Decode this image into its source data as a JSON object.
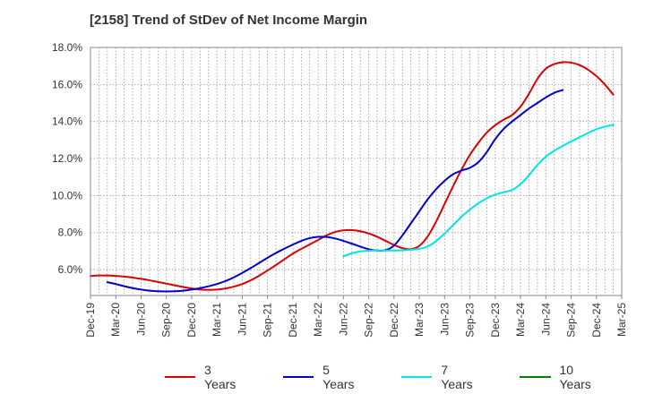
{
  "title": "[2158]  Trend of StDev of Net Income Margin",
  "chart_data": {
    "type": "line",
    "title": "[2158]  Trend of StDev of Net Income Margin",
    "xlabel": "",
    "ylabel": "",
    "x_ticks": [
      "Dec-19",
      "Mar-20",
      "Jun-20",
      "Sep-20",
      "Dec-20",
      "Mar-21",
      "Jun-21",
      "Sep-21",
      "Dec-21",
      "Mar-22",
      "Jun-22",
      "Sep-22",
      "Dec-22",
      "Mar-23",
      "Jun-23",
      "Sep-23",
      "Dec-23",
      "Mar-24",
      "Jun-24",
      "Sep-24",
      "Dec-24",
      "Mar-25"
    ],
    "y_ticks": [
      "6.0%",
      "8.0%",
      "10.0%",
      "12.0%",
      "14.0%",
      "16.0%",
      "18.0%"
    ],
    "y_tick_values": [
      6,
      8,
      10,
      12,
      14,
      16,
      18
    ],
    "ylim": [
      4.6,
      18.0
    ],
    "x_range_months": [
      0,
      63
    ],
    "grid": true,
    "legend_position": "bottom",
    "series": [
      {
        "name": "3 Years",
        "color": "#dd0000",
        "points": [
          [
            0,
            5.65
          ],
          [
            1,
            5.68
          ],
          [
            2,
            5.68
          ],
          [
            3,
            5.66
          ],
          [
            4,
            5.62
          ],
          [
            5,
            5.57
          ],
          [
            6,
            5.5
          ],
          [
            7,
            5.42
          ],
          [
            8,
            5.33
          ],
          [
            9,
            5.24
          ],
          [
            10,
            5.15
          ],
          [
            11,
            5.06
          ],
          [
            12,
            4.98
          ],
          [
            13,
            4.92
          ],
          [
            14,
            4.9
          ],
          [
            15,
            4.92
          ],
          [
            16,
            4.98
          ],
          [
            17,
            5.08
          ],
          [
            18,
            5.22
          ],
          [
            19,
            5.42
          ],
          [
            20,
            5.67
          ],
          [
            21,
            5.95
          ],
          [
            22,
            6.25
          ],
          [
            23,
            6.56
          ],
          [
            24,
            6.86
          ],
          [
            25,
            7.12
          ],
          [
            26,
            7.36
          ],
          [
            27,
            7.6
          ],
          [
            28,
            7.85
          ],
          [
            29,
            8.03
          ],
          [
            30,
            8.12
          ],
          [
            31,
            8.13
          ],
          [
            32,
            8.07
          ],
          [
            33,
            7.95
          ],
          [
            34,
            7.77
          ],
          [
            35,
            7.55
          ],
          [
            36,
            7.33
          ],
          [
            37,
            7.16
          ],
          [
            38,
            7.1
          ],
          [
            39,
            7.28
          ],
          [
            40,
            7.8
          ],
          [
            41,
            8.6
          ],
          [
            42,
            9.55
          ],
          [
            43,
            10.5
          ],
          [
            44,
            11.4
          ],
          [
            45,
            12.2
          ],
          [
            46,
            12.85
          ],
          [
            47,
            13.4
          ],
          [
            48,
            13.8
          ],
          [
            49,
            14.1
          ],
          [
            50,
            14.35
          ],
          [
            51,
            14.8
          ],
          [
            52,
            15.5
          ],
          [
            53,
            16.3
          ],
          [
            54,
            16.85
          ],
          [
            55,
            17.1
          ],
          [
            56,
            17.2
          ],
          [
            57,
            17.18
          ],
          [
            58,
            17.05
          ],
          [
            59,
            16.8
          ],
          [
            60,
            16.45
          ],
          [
            61,
            16.0
          ],
          [
            62,
            15.45
          ]
        ]
      },
      {
        "name": "5 Years",
        "color": "#0000cc",
        "points": [
          [
            2,
            5.32
          ],
          [
            3,
            5.22
          ],
          [
            4,
            5.1
          ],
          [
            5,
            5.0
          ],
          [
            6,
            4.92
          ],
          [
            7,
            4.86
          ],
          [
            8,
            4.83
          ],
          [
            9,
            4.82
          ],
          [
            10,
            4.83
          ],
          [
            11,
            4.86
          ],
          [
            12,
            4.92
          ],
          [
            13,
            5.0
          ],
          [
            14,
            5.1
          ],
          [
            15,
            5.22
          ],
          [
            16,
            5.38
          ],
          [
            17,
            5.58
          ],
          [
            18,
            5.82
          ],
          [
            19,
            6.08
          ],
          [
            20,
            6.36
          ],
          [
            21,
            6.64
          ],
          [
            22,
            6.9
          ],
          [
            23,
            7.13
          ],
          [
            24,
            7.35
          ],
          [
            25,
            7.55
          ],
          [
            26,
            7.7
          ],
          [
            27,
            7.77
          ],
          [
            28,
            7.76
          ],
          [
            29,
            7.68
          ],
          [
            30,
            7.55
          ],
          [
            31,
            7.4
          ],
          [
            32,
            7.24
          ],
          [
            33,
            7.1
          ],
          [
            34,
            7.03
          ],
          [
            35,
            7.05
          ],
          [
            36,
            7.3
          ],
          [
            37,
            7.85
          ],
          [
            38,
            8.5
          ],
          [
            39,
            9.15
          ],
          [
            40,
            9.8
          ],
          [
            41,
            10.35
          ],
          [
            42,
            10.8
          ],
          [
            43,
            11.15
          ],
          [
            44,
            11.35
          ],
          [
            45,
            11.5
          ],
          [
            46,
            11.8
          ],
          [
            47,
            12.35
          ],
          [
            48,
            13.05
          ],
          [
            49,
            13.6
          ],
          [
            50,
            14.0
          ],
          [
            51,
            14.35
          ],
          [
            52,
            14.7
          ],
          [
            53,
            15.0
          ],
          [
            54,
            15.3
          ],
          [
            55,
            15.55
          ],
          [
            56,
            15.7
          ]
        ]
      },
      {
        "name": "7 Years",
        "color": "#00e5e5",
        "points": [
          [
            30,
            6.72
          ],
          [
            31,
            6.88
          ],
          [
            32,
            6.98
          ],
          [
            33,
            7.02
          ],
          [
            34,
            7.03
          ],
          [
            35,
            7.03
          ],
          [
            36,
            7.03
          ],
          [
            37,
            7.04
          ],
          [
            38,
            7.07
          ],
          [
            39,
            7.12
          ],
          [
            40,
            7.25
          ],
          [
            41,
            7.55
          ],
          [
            42,
            7.95
          ],
          [
            43,
            8.4
          ],
          [
            44,
            8.85
          ],
          [
            45,
            9.25
          ],
          [
            46,
            9.58
          ],
          [
            47,
            9.85
          ],
          [
            48,
            10.05
          ],
          [
            49,
            10.18
          ],
          [
            50,
            10.3
          ],
          [
            51,
            10.62
          ],
          [
            52,
            11.1
          ],
          [
            53,
            11.65
          ],
          [
            54,
            12.1
          ],
          [
            55,
            12.42
          ],
          [
            56,
            12.68
          ],
          [
            57,
            12.92
          ],
          [
            58,
            13.15
          ],
          [
            59,
            13.38
          ],
          [
            60,
            13.58
          ],
          [
            61,
            13.72
          ],
          [
            62,
            13.82
          ]
        ]
      },
      {
        "name": "10 Years",
        "color": "#008000",
        "points": []
      }
    ]
  }
}
